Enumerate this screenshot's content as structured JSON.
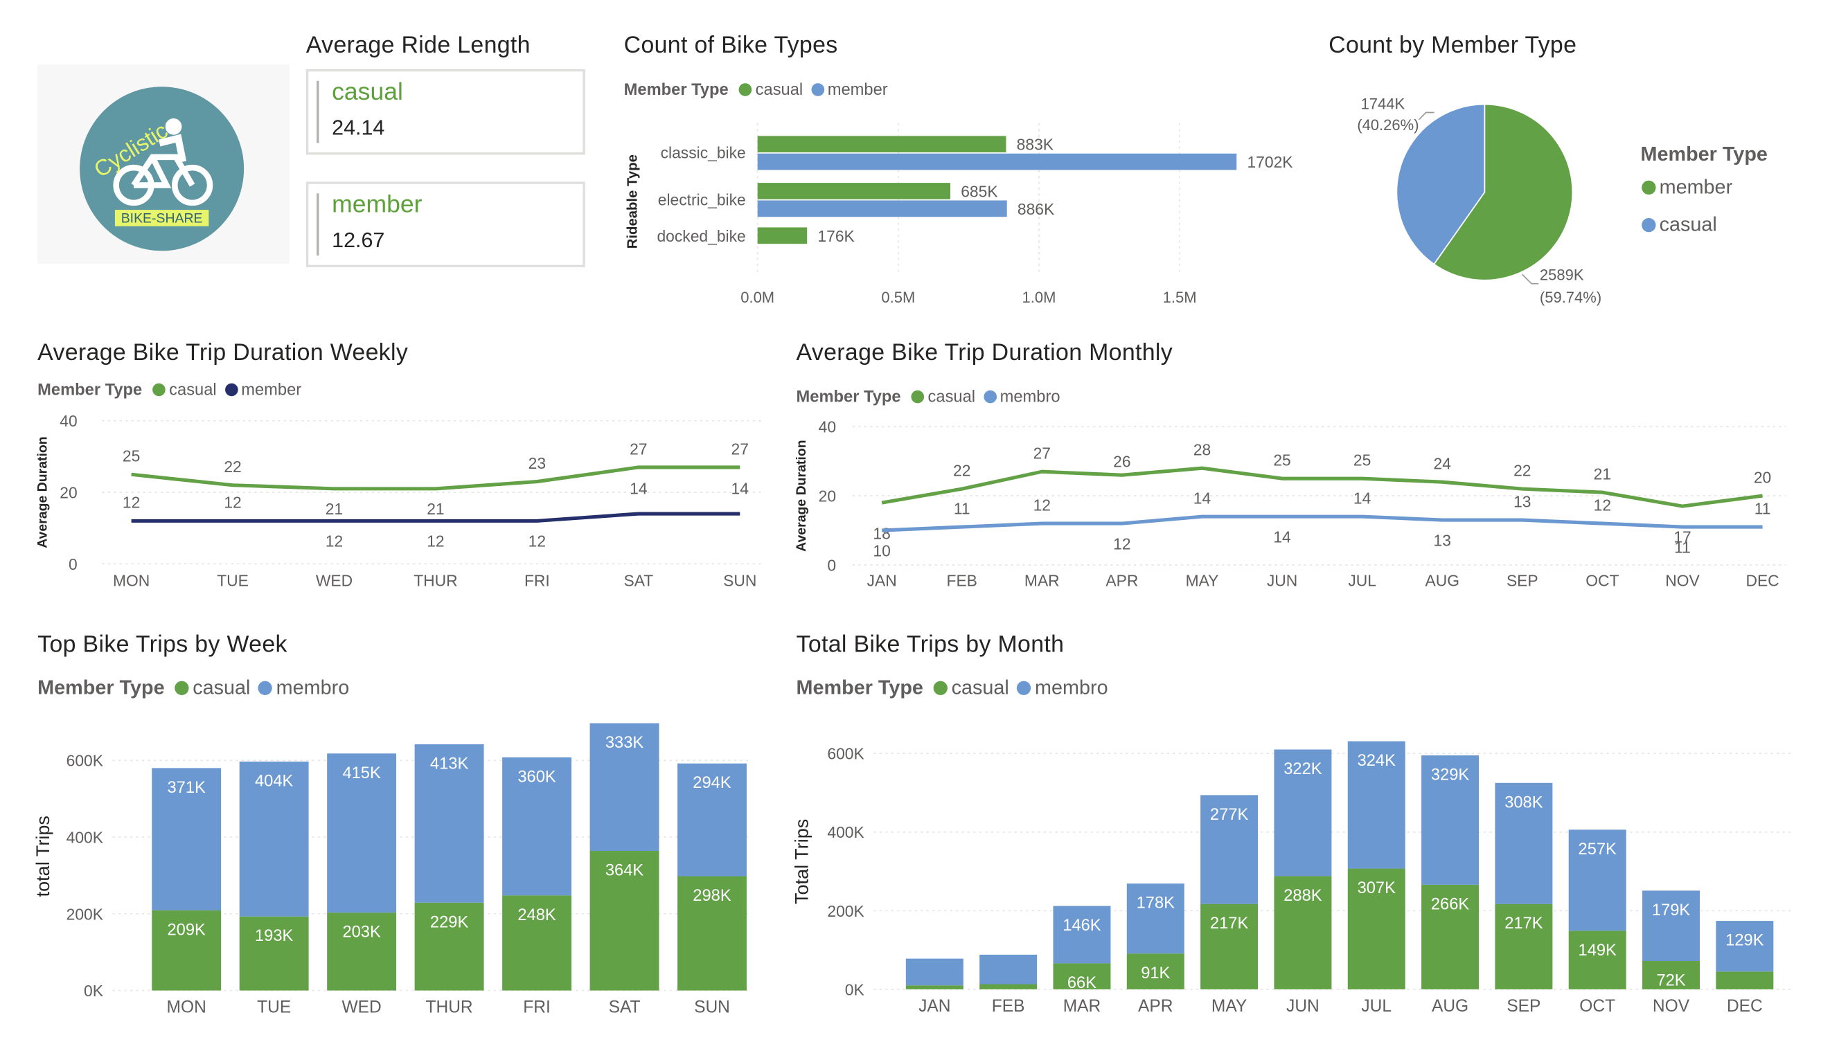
{
  "colors": {
    "casual": "#62a145",
    "member": "#6b98d0",
    "member_dark": "#242f6b",
    "logo_bg": "#5f98a2",
    "logo_text": "#e7f56a"
  },
  "logo": {
    "name": "Cyclistic",
    "sub": "BIKE-SHARE",
    "icon": "cyclist-icon"
  },
  "avg_ride": {
    "title": "Average Ride Length",
    "cards": [
      {
        "label": "casual",
        "value": "24.14"
      },
      {
        "label": "member",
        "value": "12.67"
      }
    ]
  },
  "bike_types": {
    "legend_title": "Member Type",
    "legend": [
      "casual",
      "member"
    ],
    "chart_data": {
      "type": "bar",
      "orientation": "horizontal",
      "title": "Count of Bike Types",
      "ylabel": "Rideable Type",
      "categories": [
        "classic_bike",
        "electric_bike",
        "docked_bike"
      ],
      "series": [
        {
          "name": "casual",
          "values": [
            883000,
            685000,
            176000
          ],
          "labels": [
            "883K",
            "685K",
            "176K"
          ]
        },
        {
          "name": "member",
          "values": [
            1702000,
            886000,
            null
          ],
          "labels": [
            "1702K",
            "886K",
            ""
          ]
        }
      ],
      "xlim": [
        0,
        1750000
      ],
      "x_ticks": [
        "0.0M",
        "0.5M",
        "1.0M",
        "1.5M"
      ]
    }
  },
  "member_pie": {
    "legend_title": "Member Type",
    "legend": [
      "member",
      "casual"
    ],
    "chart_data": {
      "type": "pie",
      "title": "Count by Member Type",
      "labels": [
        "member",
        "casual"
      ],
      "values": [
        2589000,
        1744000
      ],
      "value_labels": [
        "2589K",
        "1744K"
      ],
      "pct_labels": [
        "(59.74%)",
        "(40.26%)"
      ]
    }
  },
  "weekly_duration": {
    "legend_title": "Member Type",
    "legend": [
      "casual",
      "member"
    ],
    "chart_data": {
      "type": "line",
      "title": "Average Bike Trip Duration Weekly",
      "ylabel": "Average Duration",
      "categories": [
        "MON",
        "TUE",
        "WED",
        "THUR",
        "FRI",
        "SAT",
        "SUN"
      ],
      "series": [
        {
          "name": "casual",
          "values": [
            25,
            22,
            21,
            21,
            23,
            27,
            27
          ]
        },
        {
          "name": "member",
          "values": [
            12,
            12,
            12,
            12,
            12,
            14,
            14
          ]
        }
      ],
      "ylim": [
        0,
        40
      ],
      "y_ticks": [
        "0",
        "20",
        "40"
      ]
    }
  },
  "monthly_duration": {
    "legend_title": "Member Type",
    "legend": [
      "casual",
      "membro"
    ],
    "chart_data": {
      "type": "line",
      "title": "Average Bike Trip Duration Monthly",
      "ylabel": "Average Duration",
      "categories": [
        "JAN",
        "FEB",
        "MAR",
        "APR",
        "MAY",
        "JUN",
        "JUL",
        "AUG",
        "SEP",
        "OCT",
        "NOV",
        "DEC"
      ],
      "series": [
        {
          "name": "casual",
          "values": [
            18,
            22,
            27,
            26,
            28,
            25,
            25,
            24,
            22,
            21,
            17,
            20
          ]
        },
        {
          "name": "membro",
          "values": [
            10,
            11,
            12,
            12,
            14,
            14,
            14,
            13,
            13,
            12,
            11,
            11
          ]
        }
      ],
      "ylim": [
        0,
        40
      ],
      "y_ticks": [
        "0",
        "20",
        "40"
      ]
    }
  },
  "weekly_trips": {
    "legend_title": "Member Type",
    "legend": [
      "casual",
      "membro"
    ],
    "chart_data": {
      "type": "bar",
      "stacked": true,
      "title": "Top Bike Trips by Week",
      "ylabel": "total Trips",
      "categories": [
        "MON",
        "TUE",
        "WED",
        "THUR",
        "FRI",
        "SAT",
        "SUN"
      ],
      "series": [
        {
          "name": "casual",
          "values": [
            209000,
            193000,
            203000,
            229000,
            248000,
            364000,
            298000
          ],
          "labels": [
            "209K",
            "193K",
            "203K",
            "229K",
            "248K",
            "364K",
            "298K"
          ]
        },
        {
          "name": "membro",
          "values": [
            371000,
            404000,
            415000,
            413000,
            360000,
            333000,
            294000
          ],
          "labels": [
            "371K",
            "404K",
            "415K",
            "413K",
            "360K",
            "333K",
            "294K"
          ]
        }
      ],
      "ylim": [
        0,
        700000
      ],
      "y_ticks": [
        "0K",
        "200K",
        "400K",
        "600K"
      ]
    }
  },
  "monthly_trips": {
    "legend_title": "Member Type",
    "legend": [
      "casual",
      "membro"
    ],
    "chart_data": {
      "type": "bar",
      "stacked": true,
      "title": "Total Bike Trips by Month",
      "ylabel": "Total Trips",
      "categories": [
        "JAN",
        "FEB",
        "MAR",
        "APR",
        "MAY",
        "JUN",
        "JUL",
        "AUG",
        "SEP",
        "OCT",
        "NOV",
        "DEC"
      ],
      "series": [
        {
          "name": "casual",
          "values": [
            10000,
            13000,
            66000,
            91000,
            217000,
            288000,
            307000,
            266000,
            217000,
            149000,
            72000,
            45000
          ],
          "labels": [
            "",
            "",
            "66K",
            "91K",
            "217K",
            "288K",
            "307K",
            "266K",
            "217K",
            "149K",
            "72K",
            ""
          ]
        },
        {
          "name": "membro",
          "values": [
            68000,
            75000,
            146000,
            178000,
            277000,
            322000,
            324000,
            329000,
            308000,
            257000,
            179000,
            129000
          ],
          "labels": [
            "",
            "",
            "146K",
            "178K",
            "277K",
            "322K",
            "324K",
            "329K",
            "308K",
            "257K",
            "179K",
            "129K"
          ]
        }
      ],
      "ylim": [
        0,
        650000
      ],
      "y_ticks": [
        "0K",
        "200K",
        "400K",
        "600K"
      ]
    }
  }
}
